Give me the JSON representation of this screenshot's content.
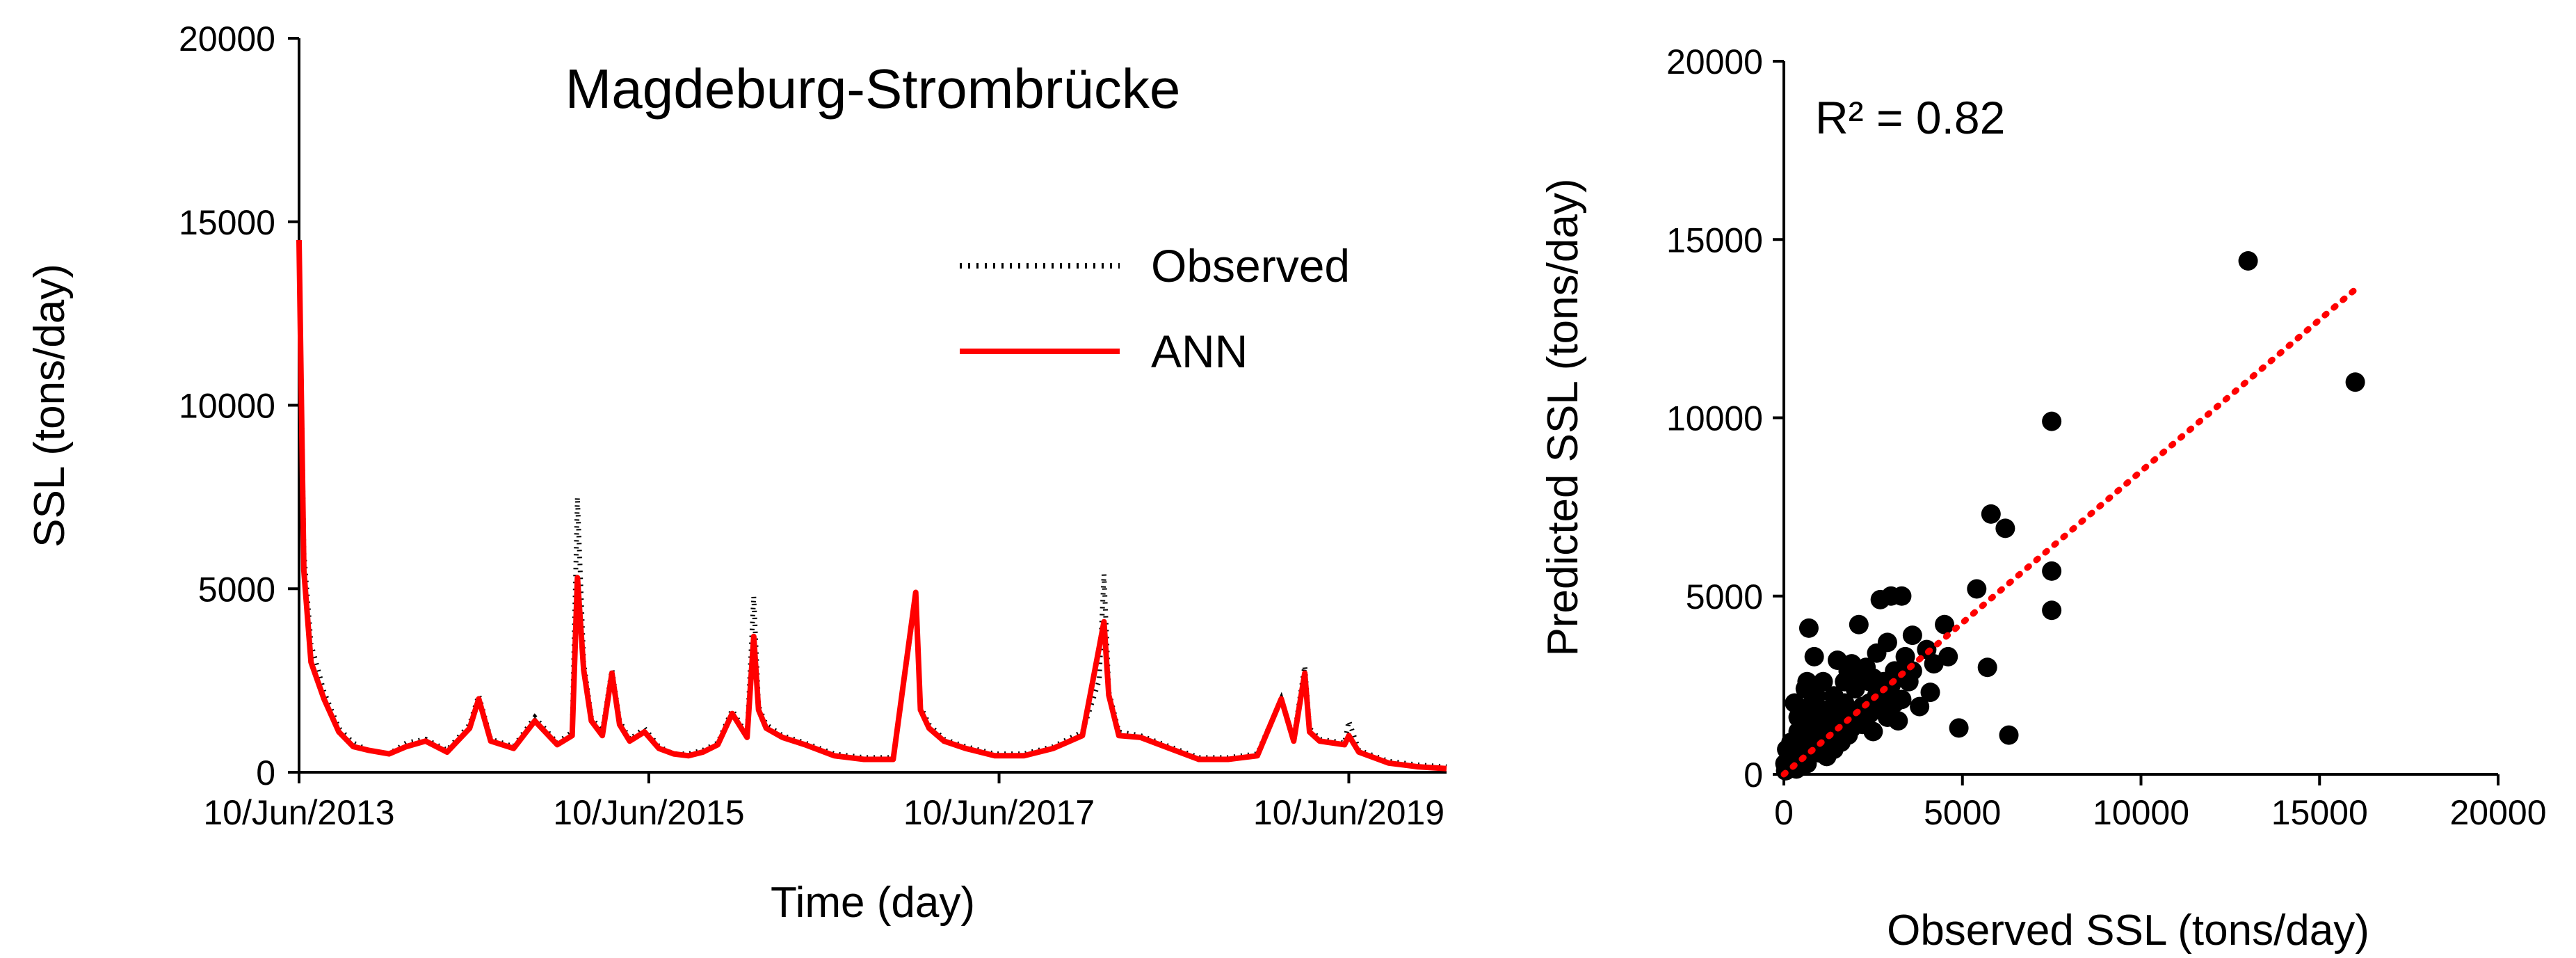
{
  "chart_data": [
    {
      "type": "line",
      "title": "Magdeburg-Strombrücke",
      "xlabel": "Time (day)",
      "ylabel": "SSL (tons/day)",
      "ylim": [
        0,
        20000
      ],
      "yticks": [
        "0",
        "5000",
        "10000",
        "15000",
        "20000"
      ],
      "xticks": [
        "10/Jun/2013",
        "10/Jun/2015",
        "10/Jun/2017",
        "10/Jun/2019"
      ],
      "x_range": [
        "2013-06-10",
        "2019-12-31"
      ],
      "legend_position": "top-right",
      "grid": false,
      "series": [
        {
          "name": "Observed",
          "style": "dotted",
          "color": "#000000",
          "x": [
            "2013-06-10",
            "2013-06-20",
            "2013-07-05",
            "2013-08-01",
            "2013-09-01",
            "2013-10-01",
            "2013-11-01",
            "2013-12-15",
            "2014-01-20",
            "2014-03-01",
            "2014-04-15",
            "2014-06-01",
            "2014-06-20",
            "2014-07-15",
            "2014-09-01",
            "2014-10-15",
            "2014-12-01",
            "2015-01-01",
            "2015-01-12",
            "2015-01-25",
            "2015-02-10",
            "2015-03-05",
            "2015-03-25",
            "2015-04-10",
            "2015-05-01",
            "2015-06-01",
            "2015-07-01",
            "2015-08-01",
            "2015-09-01",
            "2015-10-01",
            "2015-11-01",
            "2015-12-01",
            "2016-01-01",
            "2016-01-15",
            "2016-01-25",
            "2016-02-10",
            "2016-03-15",
            "2016-05-01",
            "2016-07-01",
            "2016-09-01",
            "2016-11-01",
            "2016-12-18",
            "2016-12-28",
            "2017-01-15",
            "2017-02-15",
            "2017-04-01",
            "2017-06-01",
            "2017-08-01",
            "2017-10-01",
            "2017-12-01",
            "2018-01-05",
            "2018-01-15",
            "2018-01-25",
            "2018-02-15",
            "2018-04-01",
            "2018-06-01",
            "2018-08-01",
            "2018-10-01",
            "2018-12-01",
            "2019-01-20",
            "2019-02-15",
            "2019-03-10",
            "2019-03-20",
            "2019-04-10",
            "2019-06-01",
            "2019-06-10",
            "2019-07-01",
            "2019-09-01",
            "2019-11-01",
            "2019-12-31"
          ],
          "values": [
            14500,
            6000,
            3500,
            2200,
            1200,
            800,
            600,
            500,
            800,
            900,
            600,
            1300,
            2100,
            900,
            700,
            1500,
            800,
            1100,
            7500,
            3000,
            1500,
            1100,
            2800,
            1400,
            900,
            1200,
            700,
            500,
            500,
            600,
            800,
            1700,
            1000,
            4800,
            1800,
            1300,
            1000,
            800,
            500,
            400,
            400,
            4800,
            1800,
            1300,
            900,
            700,
            500,
            500,
            700,
            1100,
            2500,
            5400,
            2200,
            1100,
            1000,
            700,
            400,
            400,
            500,
            2000,
            900,
            2900,
            1200,
            900,
            800,
            1400,
            600,
            300,
            200,
            150
          ]
        },
        {
          "name": "ANN",
          "style": "solid",
          "color": "#ff0000",
          "x": [
            "2013-06-10",
            "2013-06-20",
            "2013-07-05",
            "2013-08-01",
            "2013-09-01",
            "2013-10-01",
            "2013-11-01",
            "2013-12-15",
            "2014-01-20",
            "2014-03-01",
            "2014-04-15",
            "2014-06-01",
            "2014-06-20",
            "2014-07-15",
            "2014-09-01",
            "2014-10-15",
            "2014-12-01",
            "2015-01-01",
            "2015-01-12",
            "2015-01-25",
            "2015-02-10",
            "2015-03-05",
            "2015-03-25",
            "2015-04-10",
            "2015-05-01",
            "2015-06-01",
            "2015-07-01",
            "2015-08-01",
            "2015-09-01",
            "2015-10-01",
            "2015-11-01",
            "2015-12-01",
            "2016-01-01",
            "2016-01-15",
            "2016-01-25",
            "2016-02-10",
            "2016-03-15",
            "2016-05-01",
            "2016-07-01",
            "2016-09-01",
            "2016-11-01",
            "2016-12-18",
            "2016-12-28",
            "2017-01-15",
            "2017-02-15",
            "2017-04-01",
            "2017-06-01",
            "2017-08-01",
            "2017-10-01",
            "2017-12-01",
            "2018-01-05",
            "2018-01-15",
            "2018-01-25",
            "2018-02-15",
            "2018-04-01",
            "2018-06-01",
            "2018-08-01",
            "2018-10-01",
            "2018-12-01",
            "2019-01-20",
            "2019-02-15",
            "2019-03-10",
            "2019-03-20",
            "2019-04-10",
            "2019-06-01",
            "2019-06-10",
            "2019-07-01",
            "2019-09-01",
            "2019-11-01",
            "2019-12-31"
          ],
          "values": [
            14500,
            5500,
            3000,
            2000,
            1100,
            700,
            600,
            500,
            700,
            850,
            550,
            1200,
            2000,
            850,
            650,
            1400,
            750,
            1000,
            5300,
            2800,
            1400,
            1000,
            2700,
            1300,
            850,
            1100,
            650,
            500,
            450,
            550,
            750,
            1600,
            950,
            3700,
            1700,
            1200,
            950,
            750,
            450,
            350,
            350,
            4900,
            1700,
            1200,
            850,
            650,
            450,
            450,
            650,
            1000,
            3400,
            4100,
            2100,
            1000,
            950,
            650,
            350,
            350,
            450,
            2000,
            850,
            2700,
            1100,
            850,
            750,
            1000,
            550,
            250,
            150,
            100
          ]
        }
      ]
    },
    {
      "type": "scatter",
      "xlabel": "Observed SSL (tons/day)",
      "ylabel": "Predicted SSL (tons/day)",
      "xlim": [
        0,
        20000
      ],
      "ylim": [
        0,
        20000
      ],
      "xticks": [
        "0",
        "5000",
        "10000",
        "15000",
        "20000"
      ],
      "yticks": [
        "0",
        "5000",
        "10000",
        "15000",
        "20000"
      ],
      "annotation": "R² = 0.82",
      "grid": false,
      "trendline": {
        "style": "dotted",
        "color": "#ff0000",
        "x": [
          0,
          16000
        ],
        "y": [
          0,
          13600
        ]
      },
      "point_color": "#000000",
      "points": [
        [
          13000,
          14400
        ],
        [
          16000,
          11000
        ],
        [
          7500,
          9900
        ],
        [
          7500,
          5700
        ],
        [
          7500,
          4600
        ],
        [
          5800,
          7300
        ],
        [
          6200,
          6900
        ],
        [
          5400,
          5200
        ],
        [
          6300,
          1100
        ],
        [
          5700,
          3000
        ],
        [
          4900,
          1300
        ],
        [
          4500,
          4200
        ],
        [
          4200,
          3100
        ],
        [
          4000,
          3500
        ],
        [
          3300,
          5000
        ],
        [
          3000,
          5000
        ],
        [
          2700,
          4900
        ],
        [
          3600,
          3900
        ],
        [
          3500,
          2600
        ],
        [
          3400,
          3000
        ],
        [
          3300,
          2100
        ],
        [
          3200,
          1500
        ],
        [
          3100,
          2900
        ],
        [
          2900,
          3700
        ],
        [
          2800,
          2600
        ],
        [
          2700,
          1800
        ],
        [
          2600,
          3400
        ],
        [
          2500,
          1200
        ],
        [
          2400,
          2600
        ],
        [
          2300,
          3000
        ],
        [
          2200,
          1900
        ],
        [
          2100,
          4200
        ],
        [
          2000,
          2400
        ],
        [
          1900,
          1300
        ],
        [
          1800,
          2900
        ],
        [
          1700,
          2000
        ],
        [
          1600,
          1500
        ],
        [
          1500,
          3200
        ],
        [
          1400,
          2200
        ],
        [
          1300,
          1200
        ],
        [
          1200,
          1800
        ],
        [
          1100,
          2600
        ],
        [
          1000,
          900
        ],
        [
          950,
          1500
        ],
        [
          900,
          2200
        ],
        [
          850,
          3300
        ],
        [
          800,
          1100
        ],
        [
          750,
          1800
        ],
        [
          700,
          4100
        ],
        [
          650,
          2600
        ],
        [
          600,
          1300
        ],
        [
          550,
          900
        ],
        [
          500,
          1700
        ],
        [
          450,
          600
        ],
        [
          400,
          1200
        ],
        [
          350,
          800
        ],
        [
          300,
          2000
        ],
        [
          250,
          500
        ],
        [
          200,
          900
        ],
        [
          150,
          400
        ],
        [
          100,
          200
        ],
        [
          80,
          700
        ],
        [
          50,
          100
        ],
        [
          30,
          300
        ],
        [
          3600,
          2900
        ],
        [
          3800,
          1900
        ],
        [
          4100,
          2300
        ],
        [
          4600,
          3300
        ],
        [
          2400,
          2000
        ],
        [
          2600,
          2200
        ],
        [
          2800,
          2300
        ],
        [
          3000,
          2500
        ],
        [
          3200,
          2700
        ],
        [
          3400,
          3300
        ],
        [
          1900,
          3100
        ],
        [
          1700,
          2600
        ],
        [
          1500,
          1900
        ],
        [
          1300,
          1600
        ],
        [
          1100,
          1400
        ],
        [
          900,
          1200
        ],
        [
          700,
          900
        ],
        [
          500,
          700
        ],
        [
          300,
          400
        ],
        [
          1200,
          500
        ],
        [
          1400,
          700
        ],
        [
          1600,
          900
        ],
        [
          1800,
          1100
        ],
        [
          2000,
          1600
        ],
        [
          2200,
          1400
        ],
        [
          2400,
          1700
        ],
        [
          600,
          2400
        ],
        [
          400,
          1600
        ],
        [
          800,
          2000
        ],
        [
          1000,
          1700
        ],
        [
          2900,
          1600
        ],
        [
          3100,
          2000
        ],
        [
          2500,
          2700
        ],
        [
          2100,
          2900
        ],
        [
          1800,
          1600
        ],
        [
          1500,
          1100
        ],
        [
          1000,
          600
        ],
        [
          650,
          300
        ],
        [
          350,
          150
        ],
        [
          200,
          200
        ]
      ]
    }
  ]
}
